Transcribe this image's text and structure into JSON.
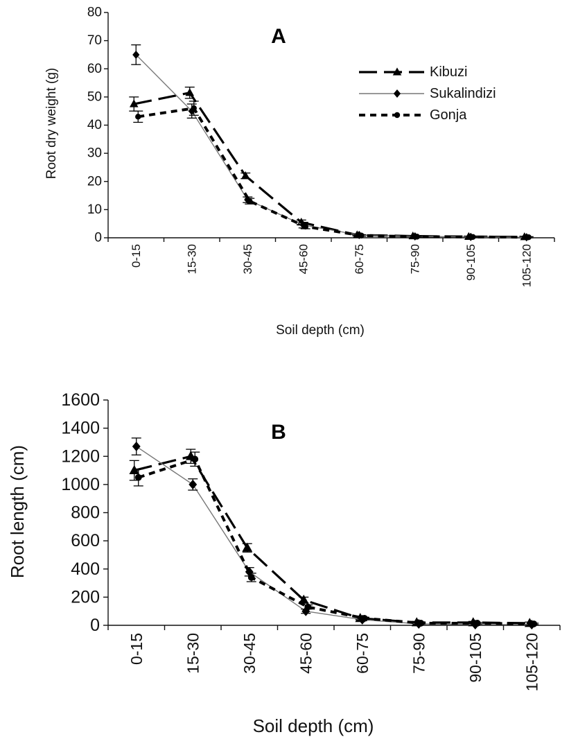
{
  "chart_data": [
    {
      "type": "line",
      "title": "A",
      "xlabel": "Soil depth (cm)",
      "ylabel": "Root dry weight (g)",
      "categories": [
        "0-15",
        "15-30",
        "30-45",
        "45-60",
        "60-75",
        "75-90",
        "90-105",
        "105-120"
      ],
      "ylim": [
        0,
        80
      ],
      "yticks": [
        0,
        10,
        20,
        30,
        40,
        50,
        60,
        70,
        80
      ],
      "legend_position": "top-right",
      "grid": false,
      "series": [
        {
          "name": "Kibuzi",
          "values": [
            47.5,
            51.5,
            22,
            5.5,
            1,
            0.6,
            0.4,
            0.3
          ],
          "errors": [
            2.5,
            2,
            1,
            0.8,
            0.3,
            0.2,
            0.2,
            0.2
          ],
          "marker": "triangle",
          "line": "long-dash"
        },
        {
          "name": "Sukalindizi",
          "values": [
            65,
            45,
            13.5,
            4.5,
            1,
            0.5,
            0.3,
            0.2
          ],
          "errors": [
            3.5,
            2.5,
            1,
            1,
            0.3,
            0.2,
            0.2,
            0.2
          ],
          "marker": "diamond",
          "line": "thin-solid"
        },
        {
          "name": "Gonja",
          "values": [
            43,
            46,
            13,
            4,
            0.8,
            0.4,
            0.3,
            0.2
          ],
          "errors": [
            2,
            2.5,
            1,
            0.8,
            0.3,
            0.2,
            0.2,
            0.2
          ],
          "marker": "circle",
          "line": "short-dash"
        }
      ]
    },
    {
      "type": "line",
      "title": "B",
      "xlabel": "Soil depth (cm)",
      "ylabel": "Root length (cm)",
      "categories": [
        "0-15",
        "15-30",
        "30-45",
        "45-60",
        "60-75",
        "75-90",
        "90-105",
        "105-120"
      ],
      "ylim": [
        0,
        1600
      ],
      "yticks": [
        0,
        200,
        400,
        600,
        800,
        1000,
        1200,
        1400,
        1600
      ],
      "grid": false,
      "series": [
        {
          "name": "Kibuzi",
          "values": [
            1100,
            1200,
            550,
            180,
            50,
            20,
            20,
            15
          ],
          "errors": [
            70,
            50,
            30,
            20,
            10,
            8,
            8,
            8
          ],
          "marker": "triangle",
          "line": "long-dash"
        },
        {
          "name": "Sukalindizi",
          "values": [
            1270,
            1000,
            380,
            100,
            40,
            10,
            5,
            5
          ],
          "errors": [
            60,
            40,
            30,
            15,
            8,
            5,
            5,
            5
          ],
          "marker": "diamond",
          "line": "thin-solid"
        },
        {
          "name": "Gonja",
          "values": [
            1050,
            1180,
            340,
            130,
            50,
            15,
            15,
            10
          ],
          "errors": [
            60,
            50,
            30,
            15,
            8,
            5,
            5,
            5
          ],
          "marker": "circle",
          "line": "short-dash"
        }
      ]
    }
  ]
}
